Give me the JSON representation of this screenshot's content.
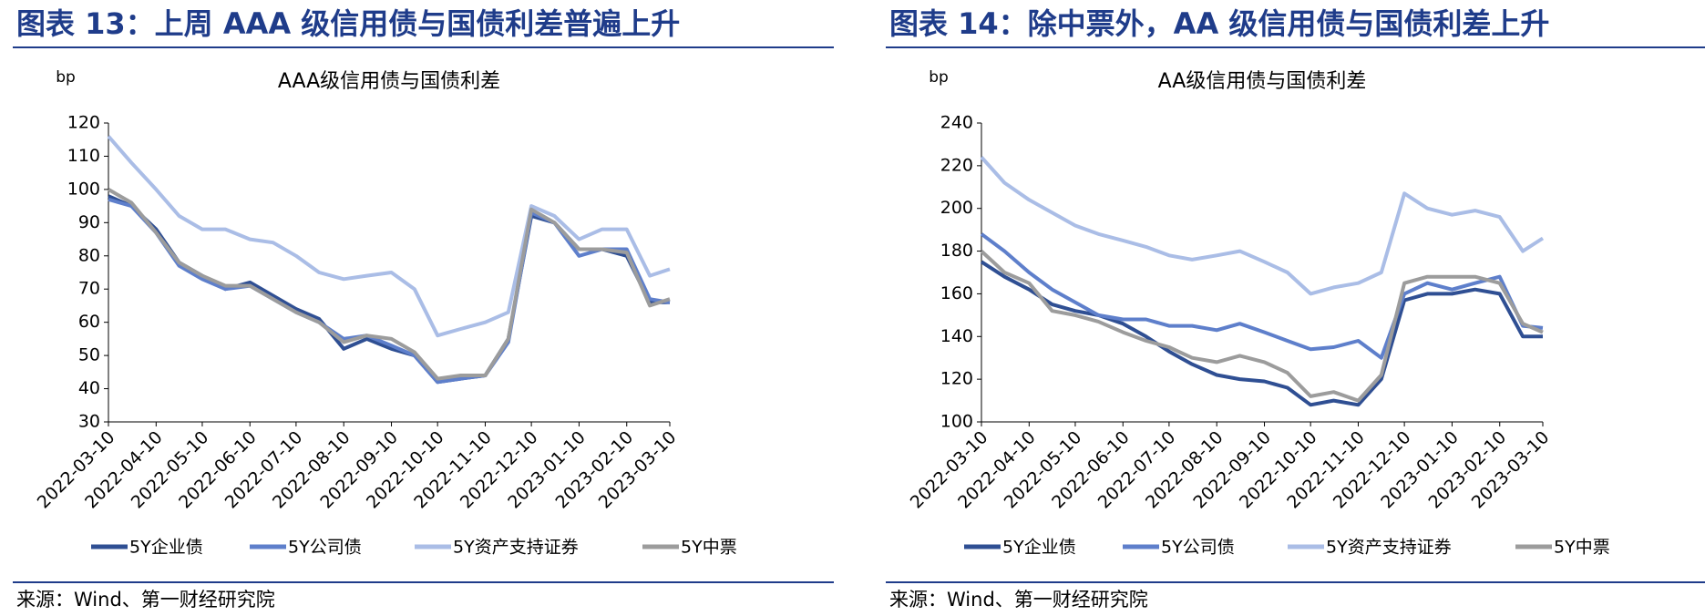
{
  "chart_data": [
    {
      "type": "line",
      "figure_title": "图表 13：上周 AAA 级信用债与国债利差普遍上升",
      "title": "AAA级信用债与国债利差",
      "unit": "bp",
      "source": "来源：Wind、第一财经研究院",
      "x": [
        "2022-03-10",
        "2022-03-25",
        "2022-04-10",
        "2022-04-25",
        "2022-05-10",
        "2022-05-25",
        "2022-06-10",
        "2022-06-25",
        "2022-07-10",
        "2022-07-25",
        "2022-08-10",
        "2022-08-25",
        "2022-09-10",
        "2022-09-25",
        "2022-10-10",
        "2022-10-25",
        "2022-11-10",
        "2022-11-25",
        "2022-12-10",
        "2022-12-25",
        "2023-01-10",
        "2023-01-25",
        "2023-02-10",
        "2023-02-25",
        "2023-03-10"
      ],
      "xlim": [
        "2022-03-10",
        "2023-03-10"
      ],
      "xticks": [
        "2022-03-10",
        "2022-04-10",
        "2022-05-10",
        "2022-06-10",
        "2022-07-10",
        "2022-08-10",
        "2022-09-10",
        "2022-10-10",
        "2022-11-10",
        "2022-12-10",
        "2023-01-10",
        "2023-02-10",
        "2023-03-10"
      ],
      "ylim": [
        30,
        120
      ],
      "yticks": [
        30,
        40,
        50,
        60,
        70,
        80,
        90,
        100,
        110,
        120
      ],
      "series": [
        {
          "name": "5Y企业债",
          "color": "#2f4f93",
          "values": [
            98,
            95,
            88,
            78,
            74,
            70,
            72,
            68,
            64,
            61,
            52,
            55,
            52,
            50,
            42,
            43,
            44,
            55,
            92,
            90,
            82,
            82,
            80,
            66,
            66
          ]
        },
        {
          "name": "5Y公司债",
          "color": "#5e7fcb",
          "values": [
            97,
            95,
            87,
            77,
            73,
            70,
            71,
            67,
            63,
            60,
            55,
            56,
            53,
            50,
            42,
            43,
            44,
            54,
            93,
            90,
            80,
            82,
            82,
            67,
            66
          ]
        },
        {
          "name": "5Y资产支持证券",
          "color": "#aabde6",
          "values": [
            116,
            108,
            100,
            92,
            88,
            88,
            85,
            84,
            80,
            75,
            73,
            74,
            75,
            70,
            56,
            58,
            60,
            63,
            95,
            92,
            85,
            88,
            88,
            74,
            76
          ]
        },
        {
          "name": "5Y中票",
          "color": "#9c9c9c",
          "values": [
            100,
            96,
            87,
            78,
            74,
            71,
            71,
            67,
            63,
            60,
            54,
            56,
            55,
            51,
            43,
            44,
            44,
            55,
            94,
            90,
            82,
            82,
            81,
            65,
            67
          ]
        }
      ]
    },
    {
      "type": "line",
      "figure_title": "图表 14：除中票外，AA 级信用债与国债利差上升",
      "title": "AA级信用债与国债利差",
      "unit": "bp",
      "source": "来源：Wind、第一财经研究院",
      "x": [
        "2022-03-10",
        "2022-03-25",
        "2022-04-10",
        "2022-04-25",
        "2022-05-10",
        "2022-05-25",
        "2022-06-10",
        "2022-06-25",
        "2022-07-10",
        "2022-07-25",
        "2022-08-10",
        "2022-08-25",
        "2022-09-10",
        "2022-09-25",
        "2022-10-10",
        "2022-10-25",
        "2022-11-10",
        "2022-11-25",
        "2022-12-10",
        "2022-12-25",
        "2023-01-10",
        "2023-01-25",
        "2023-02-10",
        "2023-02-25",
        "2023-03-10"
      ],
      "xlim": [
        "2022-03-10",
        "2023-03-10"
      ],
      "xticks": [
        "2022-03-10",
        "2022-04-10",
        "2022-05-10",
        "2022-06-10",
        "2022-07-10",
        "2022-08-10",
        "2022-09-10",
        "2022-10-10",
        "2022-11-10",
        "2022-12-10",
        "2023-01-10",
        "2023-02-10",
        "2023-03-10"
      ],
      "ylim": [
        100,
        240
      ],
      "yticks": [
        100,
        120,
        140,
        160,
        180,
        200,
        220,
        240
      ],
      "series": [
        {
          "name": "5Y企业债",
          "color": "#2f4f93",
          "values": [
            175,
            168,
            162,
            155,
            152,
            150,
            146,
            140,
            133,
            127,
            122,
            120,
            119,
            116,
            108,
            110,
            108,
            120,
            157,
            160,
            160,
            162,
            160,
            140,
            140
          ]
        },
        {
          "name": "5Y公司债",
          "color": "#5e7fcb",
          "values": [
            188,
            180,
            170,
            162,
            156,
            150,
            148,
            148,
            145,
            145,
            143,
            146,
            142,
            138,
            134,
            135,
            138,
            130,
            160,
            165,
            162,
            165,
            168,
            145,
            144
          ]
        },
        {
          "name": "5Y资产支持证券",
          "color": "#aabde6",
          "values": [
            224,
            212,
            204,
            198,
            192,
            188,
            185,
            182,
            178,
            176,
            178,
            180,
            175,
            170,
            160,
            163,
            165,
            170,
            207,
            200,
            197,
            199,
            196,
            180,
            186
          ]
        },
        {
          "name": "5Y中票",
          "color": "#9c9c9c",
          "values": [
            180,
            170,
            165,
            152,
            150,
            147,
            142,
            138,
            135,
            130,
            128,
            131,
            128,
            123,
            112,
            114,
            110,
            122,
            165,
            168,
            168,
            168,
            165,
            146,
            142
          ]
        }
      ]
    }
  ]
}
